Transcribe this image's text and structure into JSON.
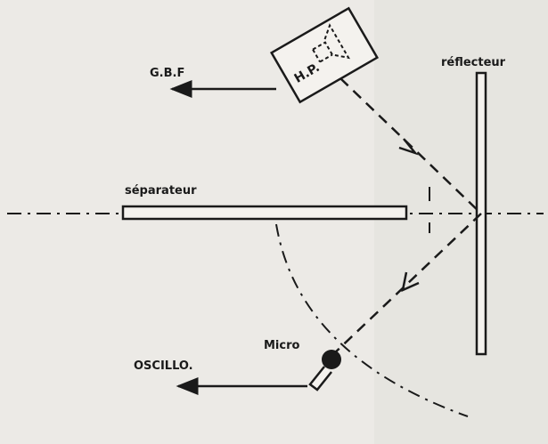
{
  "labels": {
    "hp": "H.P.",
    "gbf": "G.B.F",
    "reflecteur": "réflecteur",
    "separateur": "séparateur",
    "micro": "Micro",
    "oscillo": "OSCILLO."
  },
  "colors": {
    "ink": "#1a1a1a",
    "paper": "#eceae6"
  }
}
